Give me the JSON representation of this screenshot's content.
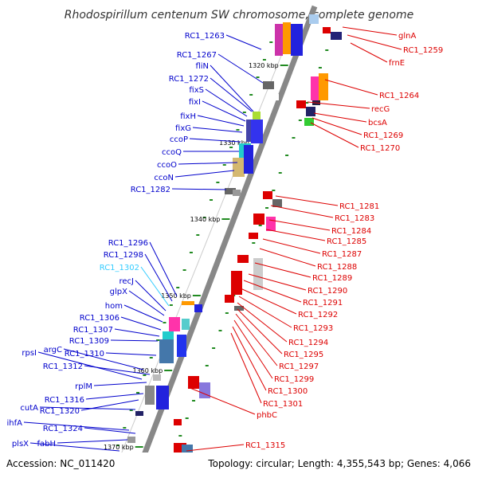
{
  "title": "Rhodospirillum centenum SW chromosome, complete genome",
  "footer": {
    "accession": "Accession: NC_011420",
    "topology": "Topology: circular; Length: 4,355,543 bp; Genes: 4,066"
  },
  "colors": {
    "left_label": "#0000cc",
    "highlight_label": "#33ccff",
    "right_label": "#dd0000",
    "backbone": "#888888",
    "tick": "#228b22"
  },
  "kbp_labels": [
    "1320 kbp",
    "1330 kbp",
    "1340 kbp",
    "1350 kbp",
    "1360 kbp",
    "1370 kbp"
  ],
  "left_genes": [
    "RC1_1263",
    "RC1_1267",
    "fliN",
    "RC1_1272",
    "fixS",
    "fixI",
    "fixH",
    "fixG",
    "ccoP",
    "ccoQ",
    "ccoO",
    "ccoN",
    "RC1_1282",
    "RC1_1296",
    "RC1_1298",
    "RC1_1302",
    "recJ",
    "glpX",
    "hom",
    "RC1_1306",
    "RC1_1307",
    "RC1_1309",
    "argC",
    "rpsI",
    "RC1_1310",
    "RC1_1312",
    "rplM",
    "cutA",
    "RC1_1316",
    "RC1_1320",
    "ihfA",
    "RC1_1324",
    "fabH",
    "plsX"
  ],
  "right_genes": [
    "glnA",
    "RC1_1259",
    "frnE",
    "RC1_1264",
    "recG",
    "bcsA",
    "RC1_1269",
    "RC1_1270",
    "RC1_1281",
    "RC1_1283",
    "RC1_1284",
    "RC1_1285",
    "RC1_1287",
    "RC1_1288",
    "RC1_1289",
    "RC1_1290",
    "RC1_1291",
    "RC1_1292",
    "RC1_1293",
    "RC1_1294",
    "RC1_1295",
    "RC1_1297",
    "RC1_1299",
    "RC1_1300",
    "RC1_1301",
    "phbC",
    "RC1_1315"
  ]
}
